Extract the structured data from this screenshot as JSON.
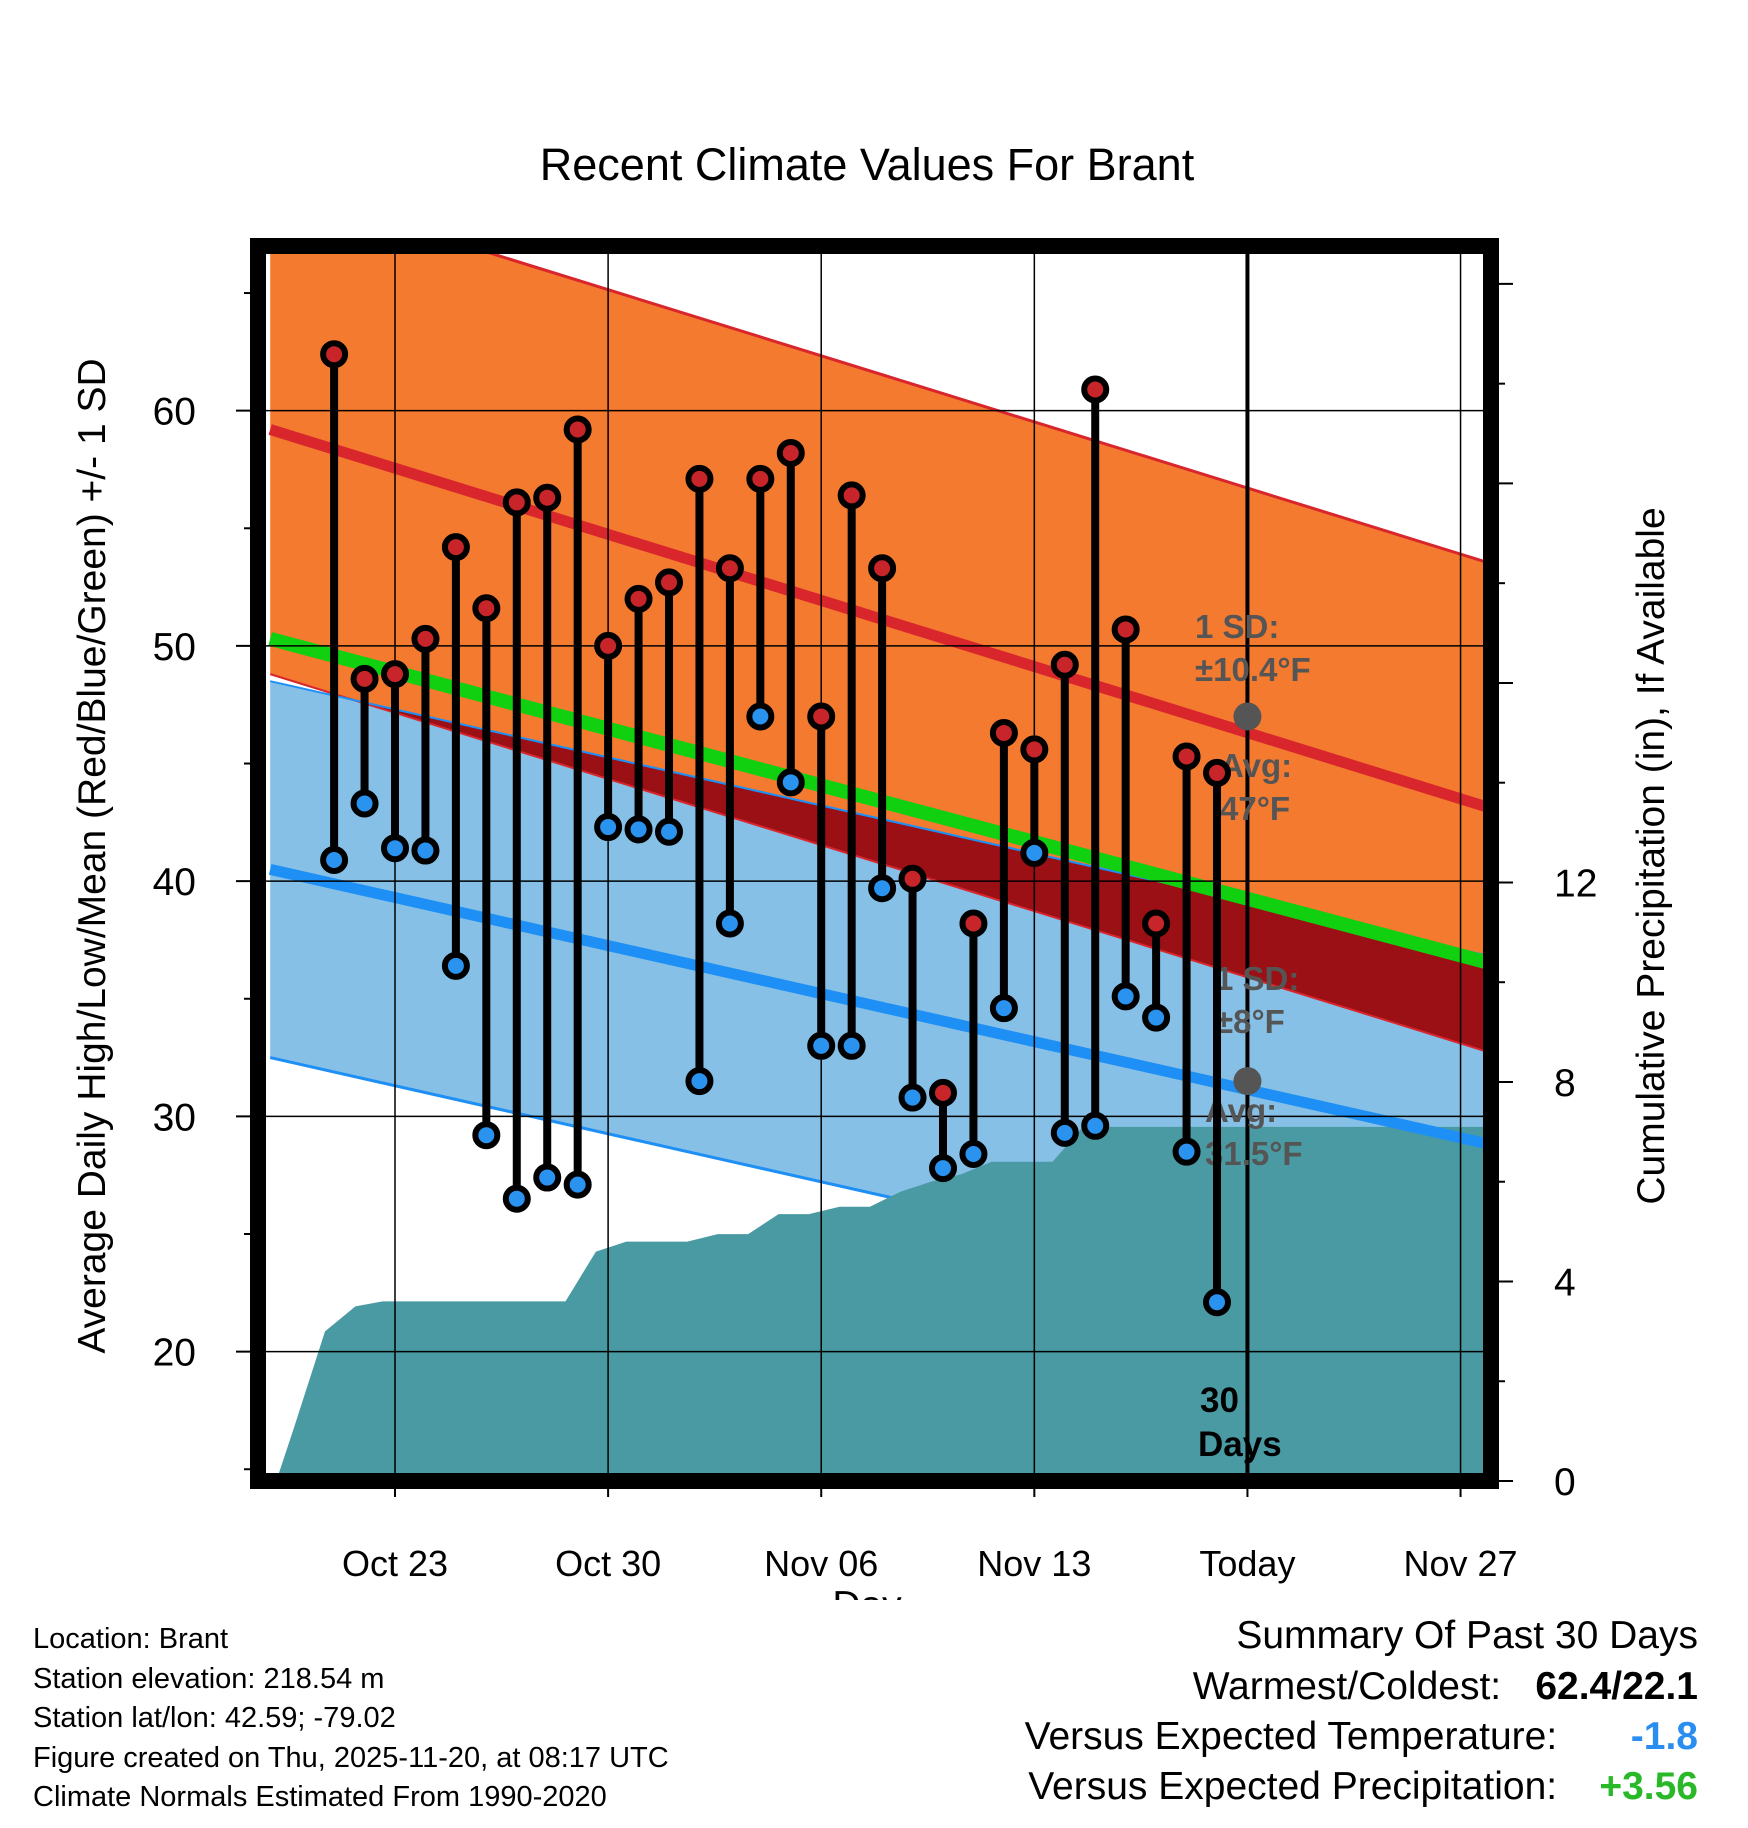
{
  "chart_data": {
    "type": "line",
    "title": "Recent Climate Values For Brant",
    "xlabel": "Day",
    "ylabel": "Average Daily High/Low/Mean (Red/Blue/Green) +/- 1 SD",
    "y2label": "Cumulative Precipitation (in), If Available",
    "xlim": [
      -2.5,
      38
    ],
    "ylim": [
      14.5,
      67
    ],
    "y2lim": [
      0,
      24.76
    ],
    "x_ticks": [
      {
        "day": 2,
        "label": "Oct 23"
      },
      {
        "day": 9,
        "label": "Oct 30"
      },
      {
        "day": 16,
        "label": "Nov 06"
      },
      {
        "day": 23,
        "label": "Nov 13"
      },
      {
        "day": 30,
        "label": "Today"
      },
      {
        "day": 37,
        "label": "Nov 27"
      }
    ],
    "y_ticks": [
      20,
      30,
      40,
      50,
      60
    ],
    "y2_ticks": [
      0,
      4,
      8,
      12
    ],
    "normals": {
      "day_range": [
        -2.1,
        38
      ],
      "high_mean": [
        59.2,
        43.1
      ],
      "high_sd": 10.4,
      "low_mean": [
        40.5,
        28.8
      ],
      "low_sd": 8,
      "mean": [
        50.3,
        36.5
      ]
    },
    "daily": [
      {
        "day": 0,
        "high": 62.4,
        "low": 40.9
      },
      {
        "day": 1,
        "high": 48.6,
        "low": 43.3
      },
      {
        "day": 2,
        "high": 48.8,
        "low": 41.4
      },
      {
        "day": 3,
        "high": 50.3,
        "low": 41.3
      },
      {
        "day": 4,
        "high": 54.2,
        "low": 36.4
      },
      {
        "day": 5,
        "high": 51.6,
        "low": 29.2
      },
      {
        "day": 6,
        "high": 56.1,
        "low": 26.5
      },
      {
        "day": 7,
        "high": 56.3,
        "low": 27.4
      },
      {
        "day": 8,
        "high": 59.2,
        "low": 27.1
      },
      {
        "day": 9,
        "high": 50.0,
        "low": 42.3
      },
      {
        "day": 10,
        "high": 52.0,
        "low": 42.2
      },
      {
        "day": 11,
        "high": 52.7,
        "low": 42.1
      },
      {
        "day": 12,
        "high": 57.1,
        "low": 31.5
      },
      {
        "day": 13,
        "high": 53.3,
        "low": 38.2
      },
      {
        "day": 14,
        "high": 57.1,
        "low": 47.0
      },
      {
        "day": 15,
        "high": 58.2,
        "low": 44.2
      },
      {
        "day": 16,
        "high": 47.0,
        "low": 33.0
      },
      {
        "day": 17,
        "high": 56.4,
        "low": 33.0
      },
      {
        "day": 18,
        "high": 53.3,
        "low": 39.7
      },
      {
        "day": 19,
        "high": 40.1,
        "low": 30.8
      },
      {
        "day": 20,
        "high": 31.0,
        "low": 27.8
      },
      {
        "day": 21,
        "high": 38.2,
        "low": 28.4
      },
      {
        "day": 22,
        "high": 46.3,
        "low": 34.6
      },
      {
        "day": 23,
        "high": 45.6,
        "low": 41.2
      },
      {
        "day": 24,
        "high": 49.2,
        "low": 29.3
      },
      {
        "day": 25,
        "high": 60.9,
        "low": 29.6
      },
      {
        "day": 26,
        "high": 50.7,
        "low": 35.1
      },
      {
        "day": 27,
        "high": 38.2,
        "low": 34.2
      },
      {
        "day": 28,
        "high": 45.3,
        "low": 28.5
      },
      {
        "day": 29,
        "high": 44.6,
        "low": 22.1
      }
    ],
    "cumulative_precip": [
      {
        "day": -1.9,
        "value": 0.0
      },
      {
        "day": -1.3,
        "value": 1.1
      },
      {
        "day": -0.3,
        "value": 3.0
      },
      {
        "day": 0.7,
        "value": 3.5
      },
      {
        "day": 1.6,
        "value": 3.6
      },
      {
        "day": 2.6,
        "value": 3.6
      },
      {
        "day": 3.6,
        "value": 3.6
      },
      {
        "day": 4.6,
        "value": 3.6
      },
      {
        "day": 5.6,
        "value": 3.6
      },
      {
        "day": 6.6,
        "value": 3.6
      },
      {
        "day": 7.6,
        "value": 3.6
      },
      {
        "day": 8.6,
        "value": 4.6
      },
      {
        "day": 9.6,
        "value": 4.8
      },
      {
        "day": 10.6,
        "value": 4.8
      },
      {
        "day": 11.6,
        "value": 4.8
      },
      {
        "day": 12.6,
        "value": 4.95
      },
      {
        "day": 13.6,
        "value": 4.95
      },
      {
        "day": 14.6,
        "value": 5.35
      },
      {
        "day": 15.6,
        "value": 5.35
      },
      {
        "day": 16.6,
        "value": 5.5
      },
      {
        "day": 17.6,
        "value": 5.5
      },
      {
        "day": 18.6,
        "value": 5.8
      },
      {
        "day": 19.6,
        "value": 6.0
      },
      {
        "day": 20.6,
        "value": 6.15
      },
      {
        "day": 21.6,
        "value": 6.4
      },
      {
        "day": 22.6,
        "value": 6.4
      },
      {
        "day": 23.6,
        "value": 6.4
      },
      {
        "day": 24.6,
        "value": 7.1
      },
      {
        "day": 25.6,
        "value": 7.1
      },
      {
        "day": 28.6,
        "value": 7.1
      },
      {
        "day": 38,
        "value": 7.1
      }
    ],
    "today_day": 30,
    "annotations": {
      "high_sd_label": "1 SD:",
      "high_sd_value": "±10.4°F",
      "high_avg_label": "Avg:",
      "high_avg_value": "47°F",
      "high_avg_marker": 47,
      "low_sd_label": "1 SD:",
      "low_sd_value": "±8°F",
      "low_avg_label": "Avg:",
      "low_avg_value": "31.5°F",
      "low_avg_marker": 31.5,
      "period_count": "30",
      "period_unit": "Days"
    },
    "colors": {
      "high_band": "#f47a30",
      "high_line": "#d8262c",
      "low_band": "#86c0e6",
      "low_line": "#1e8ff5",
      "mean_line": "#10d010",
      "overlap": "#9b1015",
      "precip": "#4a9aa4",
      "annotation": "#555555",
      "high_dot": "#c8252a",
      "low_dot": "#2a92ef"
    }
  },
  "footer": {
    "location": "Location: Brant",
    "elevation": "Station elevation: 218.54 m",
    "latlon": "Station lat/lon: 42.59; -79.02",
    "created": "Figure created on Thu, 2025-11-20, at 08:17 UTC",
    "normals": "Climate Normals Estimated From 1990-2020"
  },
  "summary": {
    "heading": "Summary Of Past 30 Days",
    "warmest_label": "Warmest/Coldest:",
    "warmest_value": "62.4/22.1",
    "temp_label": "Versus Expected Temperature:",
    "temp_value": "-1.8",
    "temp_color": "#2a8ef0",
    "precip_label": "Versus Expected Precipitation:",
    "precip_value": "+3.56",
    "precip_color": "#28b828"
  }
}
